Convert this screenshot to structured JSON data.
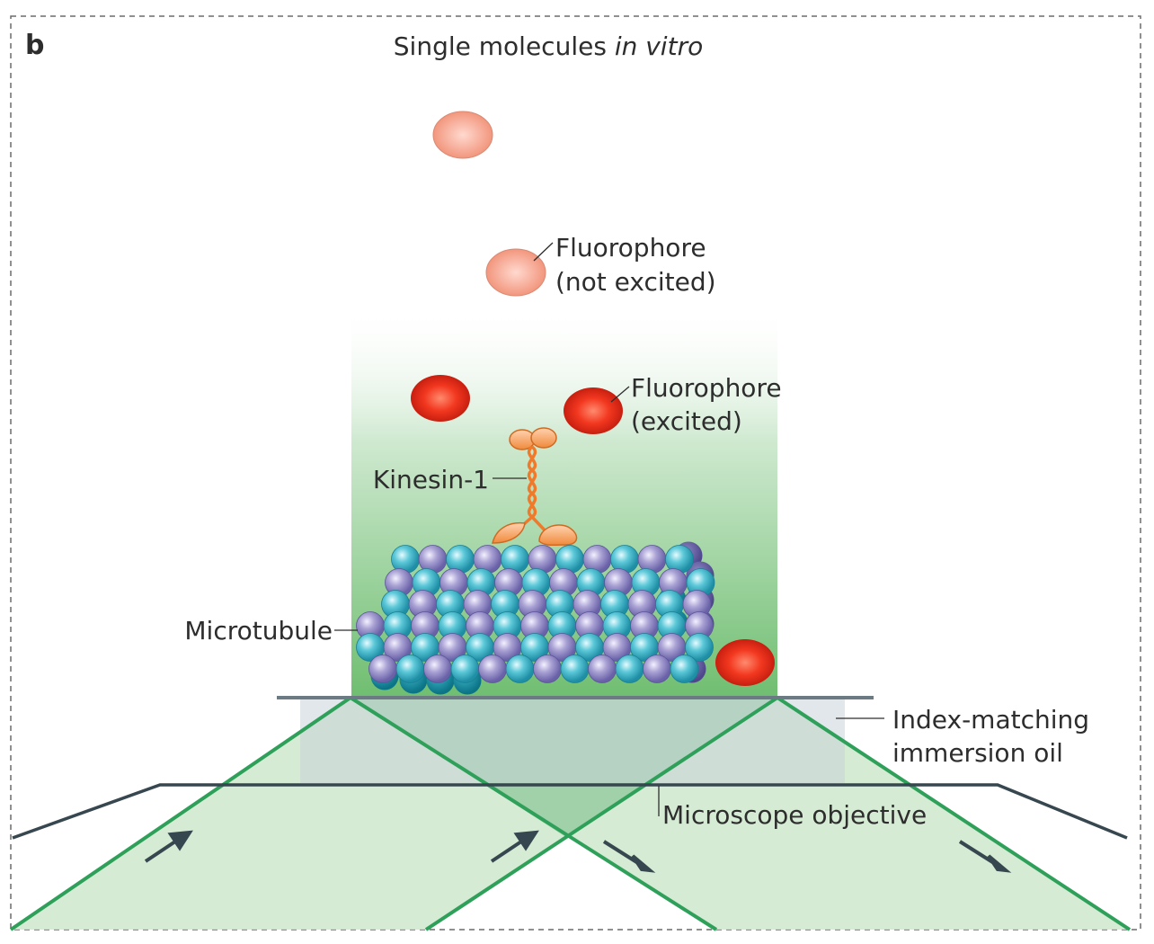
{
  "panel_letter": "b",
  "title": {
    "main": "Single molecules ",
    "italic": "in vitro"
  },
  "labels": {
    "fluorophore_not_excited_line1": "Fluorophore",
    "fluorophore_not_excited_line2": "(not excited)",
    "fluorophore_excited_line1": "Fluorophore",
    "fluorophore_excited_line2": "(excited)",
    "kinesin": "Kinesin-1",
    "microtubule": "Microtubule",
    "oil_line1": "Index-matching",
    "oil_line2": "immersion oil",
    "objective": "Microscope objective"
  },
  "colors": {
    "excited_fluorophore": "#e8301c",
    "unexcited_fluorophore": "#f5a58e",
    "kinesin": "#f07a2a",
    "alpha_tubulin": "#4fc3d3",
    "beta_tubulin": "#a79fd0",
    "evanescent_field": "#6bbf6e",
    "laser_beam": "#2fa05a",
    "objective_outline": "#37474f",
    "arrows": "#37474f"
  }
}
